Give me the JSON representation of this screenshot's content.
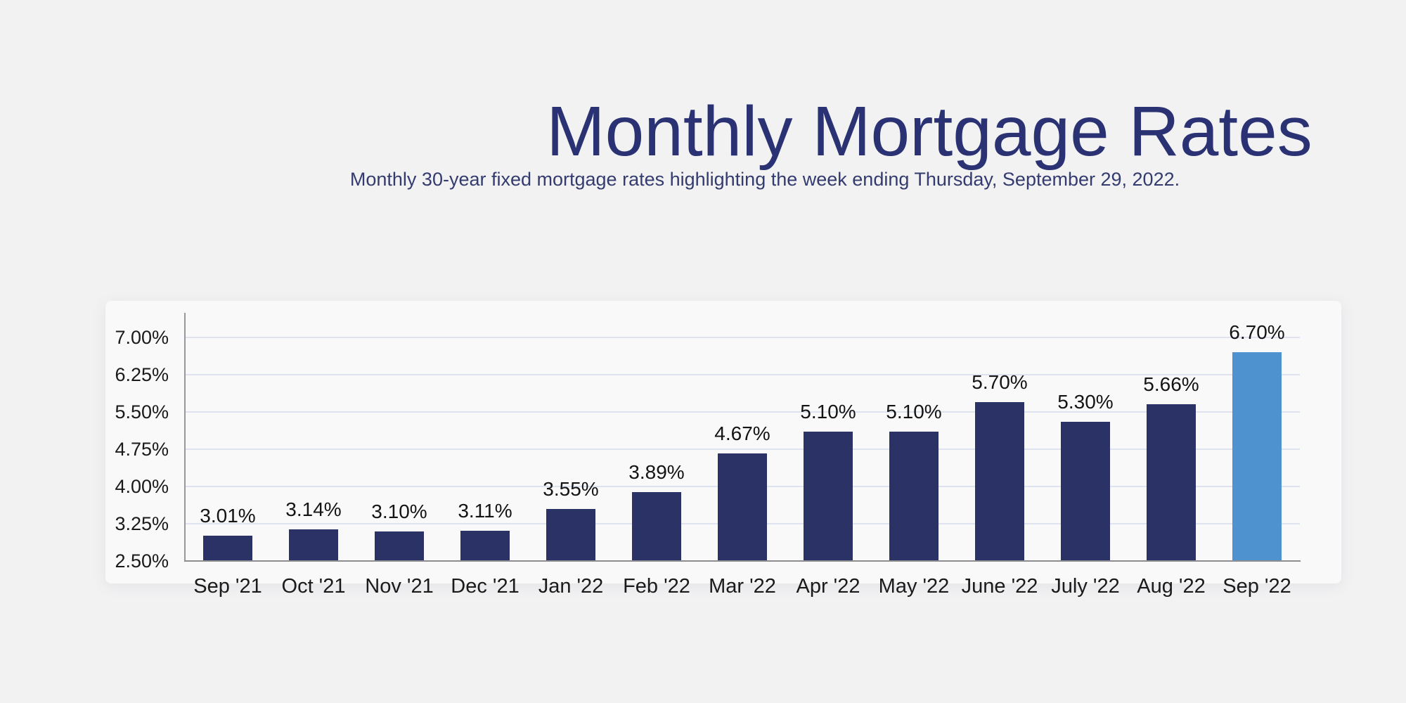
{
  "page": {
    "background_color": "#f2f2f3"
  },
  "header": {
    "title": "Monthly Mortgage Rates",
    "subtitle": "Monthly 30-year fixed mortgage rates highlighting the week ending Thursday, September 29, 2022.",
    "title_color": "#2b3273",
    "subtitle_color": "#343b6e"
  },
  "chart_data": {
    "type": "bar",
    "title": "Monthly Mortgage Rates",
    "subtitle": "Monthly 30-year fixed mortgage rates highlighting the week ending Thursday, September 29, 2022.",
    "categories": [
      "Sep '21",
      "Oct '21",
      "Nov '21",
      "Dec '21",
      "Jan '22",
      "Feb '22",
      "Mar '22",
      "Apr '22",
      "May '22",
      "June '22",
      "July '22",
      "Aug '22",
      "Sep '22"
    ],
    "values": [
      3.01,
      3.14,
      3.1,
      3.11,
      3.55,
      3.89,
      4.67,
      5.1,
      5.1,
      5.7,
      5.3,
      5.66,
      6.7
    ],
    "data_labels": [
      "3.01%",
      "3.14%",
      "3.10%",
      "3.11%",
      "3.55%",
      "3.89%",
      "4.67%",
      "5.10%",
      "5.10%",
      "5.70%",
      "5.30%",
      "5.66%",
      "6.70%"
    ],
    "xlabel": "",
    "ylabel": "",
    "y_tick_labels": [
      "7.00%",
      "6.25%",
      "5.50%",
      "4.75%",
      "4.00%",
      "3.25%",
      "2.50%"
    ],
    "y_tick_values": [
      7.0,
      6.25,
      5.5,
      4.75,
      4.0,
      3.25,
      2.5
    ],
    "ylim": [
      2.5,
      7.25
    ],
    "grid": true,
    "legend": false,
    "bar_color": "#2b3366",
    "highlight_color": "#4e92d0",
    "highlight_index": 12,
    "gridline_color": "#dfe3f0",
    "axis_color": "#8e8e90",
    "tick_label_color": "#1a1a1a"
  }
}
